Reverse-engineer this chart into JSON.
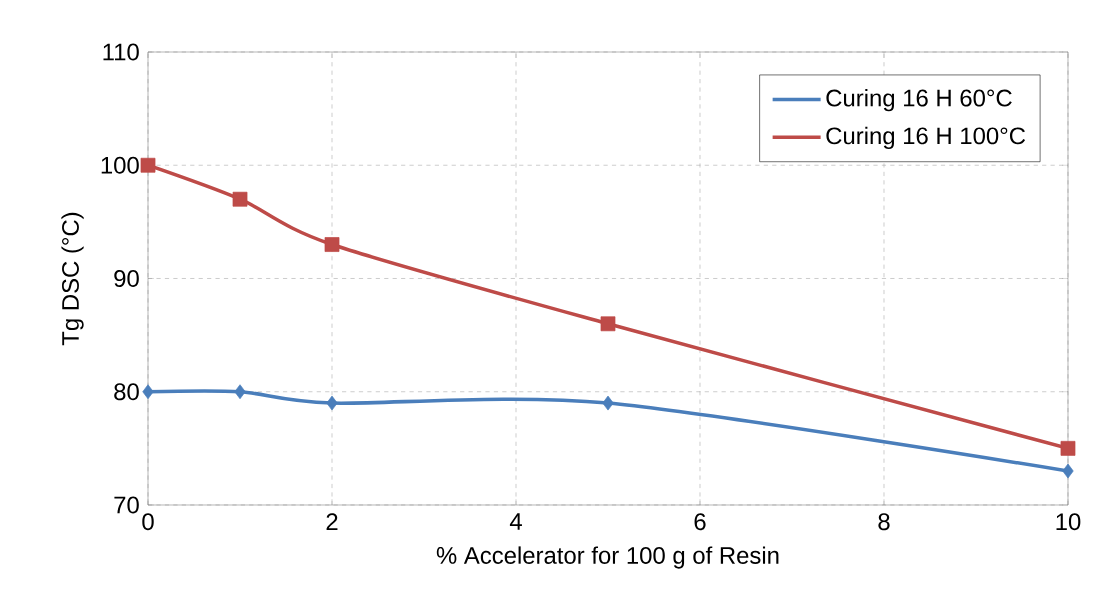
{
  "chart_data": {
    "type": "line",
    "xlabel": "% Accelerator for 100 g  of Resin",
    "ylabel": "Tg DSC (°C)",
    "x": [
      0,
      1,
      2,
      5,
      10
    ],
    "series": [
      {
        "name": "Curing 16 H 60°C",
        "color": "#4a7ebb",
        "marker": "diamond",
        "values": [
          80,
          80,
          79,
          79,
          73
        ]
      },
      {
        "name": "Curing 16 H 100°C",
        "color": "#be4b48",
        "marker": "square",
        "values": [
          100,
          97,
          93,
          86,
          75
        ]
      }
    ],
    "xlim": [
      0,
      10
    ],
    "ylim": [
      70,
      110
    ],
    "xticks": [
      0,
      2,
      4,
      6,
      8,
      10
    ],
    "yticks": [
      70,
      80,
      90,
      100,
      110
    ],
    "grid": true,
    "legend": "top right",
    "line_style": "solid"
  }
}
